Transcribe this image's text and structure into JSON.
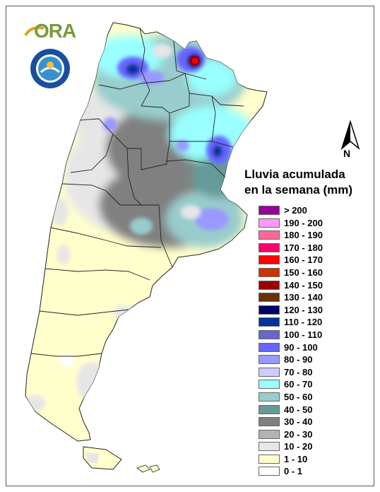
{
  "logo_text": "ORA",
  "north_label": "N",
  "legend": {
    "title_line1": "Lluvia acumulada",
    "title_line2": "en la semana (mm)",
    "items": [
      {
        "label": "> 200",
        "color": "#990099"
      },
      {
        "label": "190 - 200",
        "color": "#ff99ff"
      },
      {
        "label": "180 - 190",
        "color": "#ff6699"
      },
      {
        "label": "170 - 180",
        "color": "#ff0066"
      },
      {
        "label": "160 - 170",
        "color": "#ff0000"
      },
      {
        "label": "150 - 160",
        "color": "#cc3300"
      },
      {
        "label": "140 - 150",
        "color": "#990000"
      },
      {
        "label": "130 - 140",
        "color": "#663300"
      },
      {
        "label": "120 - 130",
        "color": "#000066"
      },
      {
        "label": "110 - 120",
        "color": "#003399"
      },
      {
        "label": "100 - 110",
        "color": "#6666cc"
      },
      {
        "label": "90 - 100",
        "color": "#6666ff"
      },
      {
        "label": "80 - 90",
        "color": "#9999ff"
      },
      {
        "label": "70 - 80",
        "color": "#ccccff"
      },
      {
        "label": "60 - 70",
        "color": "#99ffff"
      },
      {
        "label": "50 - 60",
        "color": "#99cccc"
      },
      {
        "label": "40 - 50",
        "color": "#669999"
      },
      {
        "label": "30 - 40",
        "color": "#808080"
      },
      {
        "label": "20 - 30",
        "color": "#b3b3b3"
      },
      {
        "label": "10 - 20",
        "color": "#e6e6e6"
      },
      {
        "label": "1 - 10",
        "color": "#ffffcc"
      },
      {
        "label": "0 - 1",
        "color": "#ffffff"
      }
    ]
  }
}
